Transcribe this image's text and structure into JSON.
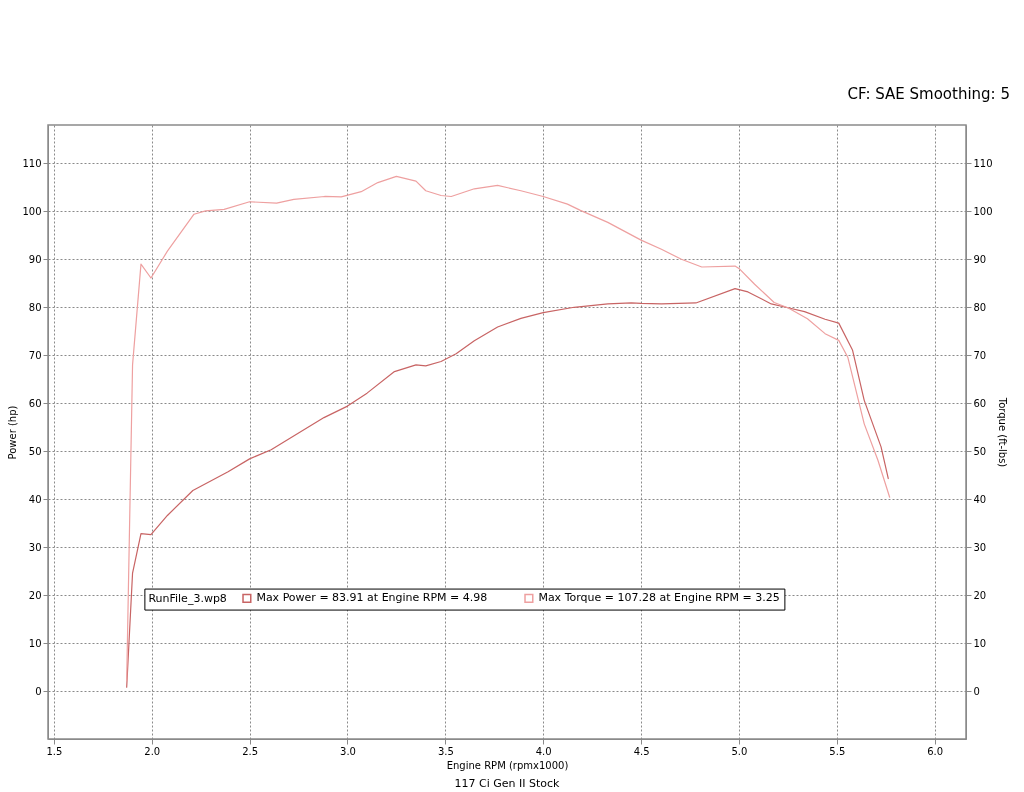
{
  "chart_data": {
    "type": "line",
    "xlabel": "Engine RPM (rpmx1000)",
    "ylabel": "Power (hp)",
    "y2label": "Torque (ft-lbs)",
    "legend_title": "RunFile_3.wp8",
    "annotations": [
      "CF: SAE Smoothing: 5",
      "117 Ci Gen II Stock"
    ],
    "series": [
      {
        "name": "Max Power = 83.91 at Engine RPM = 4.98",
        "color": "#c86464",
        "x": [
          1.872,
          1.902,
          1.945,
          1.996,
          2.08,
          2.21,
          2.39,
          2.5,
          2.61,
          2.746,
          2.88,
          3.0,
          3.1,
          3.24,
          3.35,
          3.4,
          3.478,
          3.555,
          3.648,
          3.767,
          3.886,
          4.0,
          4.158,
          4.33,
          4.45,
          4.5,
          4.604,
          4.78,
          4.98,
          5.046,
          5.165,
          5.25,
          5.335,
          5.44,
          5.51,
          5.58,
          5.64,
          5.726,
          5.763
        ],
        "values": [
          0.8,
          24.6,
          32.8,
          32.6,
          36.6,
          41.8,
          45.7,
          48.4,
          50.3,
          53.7,
          57.0,
          59.4,
          62.1,
          66.6,
          68.0,
          67.8,
          68.7,
          70.3,
          73.0,
          75.9,
          77.7,
          78.9,
          80.0,
          80.7,
          80.9,
          80.8,
          80.7,
          80.9,
          83.9,
          83.2,
          80.7,
          79.9,
          79.1,
          77.5,
          76.7,
          71.1,
          60.6,
          50.9,
          44.3
        ]
      },
      {
        "name": "Max Torque = 107.28 at Engine RPM = 3.25",
        "color": "#eea0a0",
        "x": [
          1.872,
          1.902,
          1.945,
          1.996,
          2.08,
          2.216,
          2.275,
          2.37,
          2.5,
          2.638,
          2.726,
          2.883,
          2.968,
          3.07,
          3.155,
          3.25,
          3.35,
          3.4,
          3.478,
          3.53,
          3.648,
          3.767,
          3.886,
          4.0,
          4.124,
          4.19,
          4.33,
          4.5,
          4.604,
          4.706,
          4.81,
          4.98,
          5.0,
          5.08,
          5.18,
          5.25,
          5.35,
          5.44,
          5.51,
          5.556,
          5.64,
          5.71,
          5.77
        ],
        "values": [
          2.2,
          68.0,
          89.0,
          86.1,
          91.7,
          99.4,
          100.1,
          100.4,
          102.0,
          101.7,
          102.5,
          103.1,
          103.0,
          104.1,
          106.0,
          107.3,
          106.3,
          104.3,
          103.3,
          103.1,
          104.7,
          105.4,
          104.3,
          103.1,
          101.5,
          100.2,
          97.7,
          94.0,
          92.1,
          90.0,
          88.4,
          88.6,
          88.1,
          84.8,
          81.0,
          79.9,
          77.6,
          74.5,
          73.1,
          69.6,
          55.7,
          48.1,
          40.4
        ]
      }
    ],
    "xlim": [
      1.47,
      6.16
    ],
    "xticks": [
      1.5,
      {
        "value": 2,
        "label": "2.0"
      },
      2.5,
      {
        "value": 3,
        "label": "3.0"
      },
      3.5,
      {
        "value": 4,
        "label": "4.0"
      },
      4.5,
      {
        "value": 5,
        "label": "5.0"
      },
      5.5,
      {
        "value": 6,
        "label": "6.0"
      }
    ],
    "ylim": [
      -10,
      118
    ],
    "yticks": [
      0,
      10,
      20,
      30,
      40,
      50,
      60,
      70,
      80,
      90,
      100,
      110
    ],
    "y2lim": [
      -10,
      118
    ],
    "y2ticks": [
      0,
      10,
      20,
      30,
      40,
      50,
      60,
      70,
      80,
      90,
      100,
      110
    ],
    "grid": true,
    "legend": "bottom",
    "line_style": "solid"
  }
}
